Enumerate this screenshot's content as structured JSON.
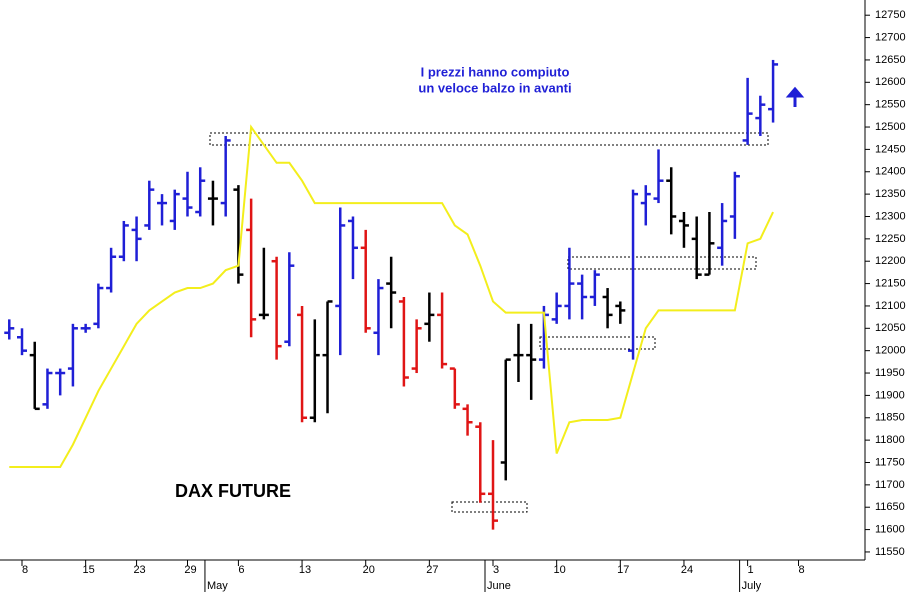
{
  "chart_data": {
    "type": "ohlc",
    "annotation_title": "DAX FUTURE",
    "annotation_lines": [
      "I prezzi hanno compiuto",
      "un veloce balzo in avanti"
    ],
    "categories": [
      null,
      "8",
      null,
      null,
      null,
      null,
      "15",
      null,
      null,
      null,
      "23",
      null,
      null,
      null,
      "29",
      null,
      null,
      null,
      "6",
      null,
      null,
      null,
      null,
      "13",
      null,
      null,
      null,
      null,
      "20",
      null,
      null,
      null,
      null,
      "27",
      null,
      null,
      null,
      null,
      "3",
      null,
      null,
      null,
      null,
      "10",
      null,
      null,
      null,
      null,
      "17",
      null,
      null,
      null,
      null,
      "24",
      null,
      null,
      null,
      null,
      "1",
      null,
      null,
      null,
      "8",
      null,
      null
    ],
    "months": [
      null,
      null,
      null,
      null,
      null,
      null,
      null,
      null,
      null,
      null,
      null,
      null,
      null,
      null,
      null,
      null,
      "May",
      null,
      null,
      null,
      null,
      null,
      null,
      null,
      null,
      null,
      null,
      null,
      null,
      null,
      null,
      null,
      null,
      null,
      null,
      null,
      null,
      null,
      "June",
      null,
      null,
      null,
      null,
      null,
      null,
      null,
      null,
      null,
      null,
      null,
      null,
      null,
      null,
      null,
      null,
      null,
      null,
      null,
      "July",
      null,
      null,
      null,
      null,
      null,
      null,
      null
    ],
    "open": [
      12040,
      12030,
      11990,
      11880,
      11950,
      11960,
      12050,
      12060,
      12140,
      12210,
      12270,
      12280,
      12330,
      12290,
      12340,
      12310,
      12340,
      12330,
      12360,
      12270,
      12080,
      12200,
      12020,
      12080,
      11850,
      11990,
      12100,
      12290,
      12230,
      12040,
      12150,
      12110,
      11960,
      12060,
      12080,
      11960,
      11870,
      11830,
      11680,
      11750,
      11990,
      11990,
      11980,
      12070,
      12100,
      12150,
      12120,
      12120,
      12100,
      12000,
      12330,
      12340,
      12380,
      12290,
      12250,
      12170,
      12230,
      12300,
      12470,
      12520,
      12540,
      null,
      null,
      null,
      null,
      null
    ],
    "high": [
      12070,
      12050,
      12020,
      11960,
      11960,
      12060,
      12060,
      12150,
      12230,
      12290,
      12300,
      12380,
      12350,
      12360,
      12400,
      12410,
      12380,
      12480,
      12370,
      12340,
      12230,
      12210,
      12220,
      12100,
      12070,
      12110,
      12320,
      12300,
      12270,
      12160,
      12210,
      12120,
      12070,
      12130,
      12130,
      11960,
      11880,
      11840,
      11800,
      11980,
      12060,
      12060,
      12100,
      12130,
      12230,
      12170,
      12180,
      12140,
      12110,
      12360,
      12370,
      12450,
      12410,
      12310,
      12300,
      12310,
      12330,
      12400,
      12610,
      12570,
      12650,
      null,
      null,
      null,
      null,
      null
    ],
    "low": [
      12025,
      11990,
      11870,
      11870,
      11900,
      11920,
      12040,
      12050,
      12130,
      12200,
      12200,
      12270,
      12280,
      12270,
      12300,
      12300,
      12280,
      12300,
      12150,
      12030,
      12070,
      11980,
      12010,
      11840,
      11840,
      11860,
      11990,
      12160,
      12040,
      11990,
      12050,
      11920,
      11950,
      12020,
      11960,
      11870,
      11810,
      11660,
      11600,
      11710,
      11930,
      11890,
      11960,
      12060,
      12070,
      12070,
      12100,
      12050,
      12060,
      11980,
      12280,
      12330,
      12260,
      12230,
      12160,
      12170,
      12190,
      12250,
      12460,
      12480,
      12510,
      null,
      null,
      null,
      null,
      null
    ],
    "close": [
      12050,
      12000,
      11870,
      11950,
      11950,
      12050,
      12050,
      12140,
      12210,
      12280,
      12250,
      12360,
      12330,
      12350,
      12320,
      12380,
      12340,
      12470,
      12170,
      12070,
      12080,
      12010,
      12190,
      11850,
      11990,
      12110,
      12280,
      12230,
      12050,
      12140,
      12130,
      11940,
      12050,
      12080,
      11970,
      11880,
      11840,
      11680,
      11620,
      11980,
      11990,
      11980,
      12080,
      12100,
      12150,
      12120,
      12170,
      12080,
      12090,
      12350,
      12350,
      12380,
      12300,
      12280,
      12170,
      12240,
      12290,
      12390,
      12530,
      12550,
      12640,
      null,
      null,
      null,
      null,
      null
    ],
    "colors": [
      "#1f1fd6",
      "#1f1fd6",
      "#000000",
      "#1f1fd6",
      "#1f1fd6",
      "#1f1fd6",
      "#1f1fd6",
      "#1f1fd6",
      "#1f1fd6",
      "#1f1fd6",
      "#1f1fd6",
      "#1f1fd6",
      "#1f1fd6",
      "#1f1fd6",
      "#1f1fd6",
      "#1f1fd6",
      "#000000",
      "#1f1fd6",
      "#000000",
      "#e01515",
      "#000000",
      "#e01515",
      "#1f1fd6",
      "#e01515",
      "#000000",
      "#000000",
      "#1f1fd6",
      "#1f1fd6",
      "#e01515",
      "#1f1fd6",
      "#000000",
      "#e01515",
      "#e01515",
      "#000000",
      "#e01515",
      "#e01515",
      "#e01515",
      "#e01515",
      "#e01515",
      "#000000",
      "#000000",
      "#000000",
      "#1f1fd6",
      "#1f1fd6",
      "#1f1fd6",
      "#1f1fd6",
      "#1f1fd6",
      "#000000",
      "#000000",
      "#1f1fd6",
      "#1f1fd6",
      "#1f1fd6",
      "#000000",
      "#000000",
      "#000000",
      "#000000",
      "#1f1fd6",
      "#1f1fd6",
      "#1f1fd6",
      "#1f1fd6",
      "#1f1fd6",
      null,
      null,
      null,
      null,
      null
    ],
    "line": {
      "color": "#f3ee1c",
      "values": [
        11740,
        11740,
        11740,
        11740,
        11740,
        11790,
        11850,
        11910,
        11960,
        12010,
        12060,
        12090,
        12110,
        12130,
        12140,
        12140,
        12150,
        12180,
        12190,
        12500,
        12460,
        12420,
        12420,
        12380,
        12330,
        12330,
        12330,
        12330,
        12330,
        12330,
        12330,
        12330,
        12330,
        12330,
        12330,
        12280,
        12260,
        12190,
        12110,
        12085,
        12085,
        12085,
        12085,
        11770,
        11840,
        11845,
        11845,
        11845,
        11850,
        11950,
        12050,
        12090,
        12090,
        12090,
        12090,
        12090,
        12090,
        12090,
        12240,
        12250,
        12310,
        null,
        null,
        null,
        null,
        null
      ]
    },
    "ylim": [
      11532,
      12784
    ],
    "yticks": [
      11550,
      11600,
      11650,
      11700,
      11750,
      11800,
      11850,
      11900,
      11950,
      12000,
      12050,
      12100,
      12150,
      12200,
      12250,
      12300,
      12350,
      12400,
      12450,
      12500,
      12550,
      12600,
      12650,
      12700,
      12750
    ]
  }
}
